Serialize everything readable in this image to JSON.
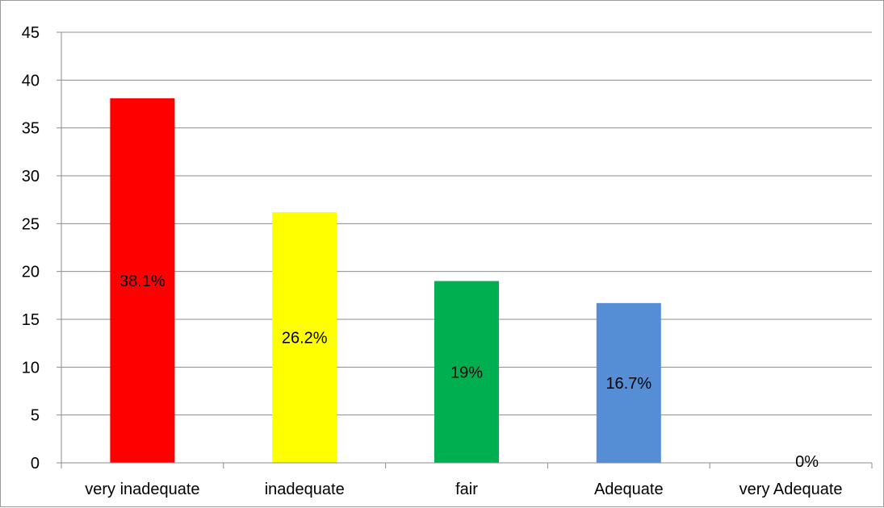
{
  "chart_data": {
    "type": "bar",
    "categories": [
      "very inadequate",
      "inadequate",
      "fair",
      "Adequate",
      "very Adequate"
    ],
    "values": [
      38.1,
      26.2,
      19,
      16.7,
      0
    ],
    "data_labels": [
      "38.1%",
      "26.2%",
      "19%",
      "16.7%",
      "0%"
    ],
    "colors": [
      "#ff0000",
      "#ffff00",
      "#00b050",
      "#558ed5",
      "#558ed5"
    ],
    "ylim": [
      0,
      45
    ],
    "yticks": [
      0,
      5,
      10,
      15,
      20,
      25,
      30,
      35,
      40,
      45
    ],
    "grid": true,
    "legend": "none"
  }
}
